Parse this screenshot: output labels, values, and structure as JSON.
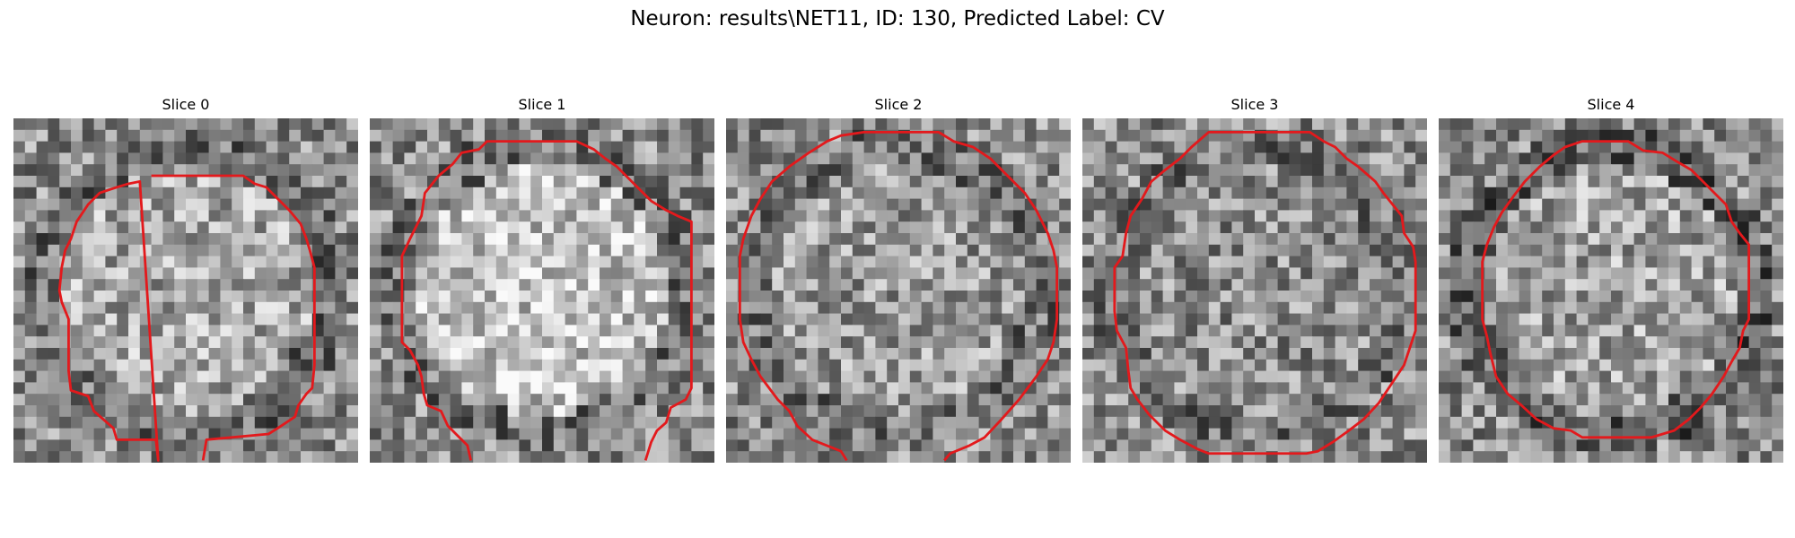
{
  "figure": {
    "title": "Neuron: results\\NET11, ID: 130, Predicted Label: CV"
  },
  "panels": [
    {
      "title": "Slice 0",
      "seed": 11,
      "center_bias": 0.1,
      "ring": 0.12,
      "contour_color": "#e3191c"
    },
    {
      "title": "Slice 1",
      "seed": 23,
      "center_bias": 0.22,
      "ring": 0.1,
      "contour_color": "#e3191c"
    },
    {
      "title": "Slice 2",
      "seed": 37,
      "center_bias": 0.05,
      "ring": 0.1,
      "contour_color": "#e3191c"
    },
    {
      "title": "Slice 3",
      "seed": 41,
      "center_bias": 0.0,
      "ring": 0.1,
      "contour_color": "#e3191c"
    },
    {
      "title": "Slice 4",
      "seed": 53,
      "center_bias": 0.08,
      "ring": 0.18,
      "contour_color": "#e3191c"
    }
  ],
  "image_style": {
    "colormap": "gray",
    "grid": 30
  }
}
